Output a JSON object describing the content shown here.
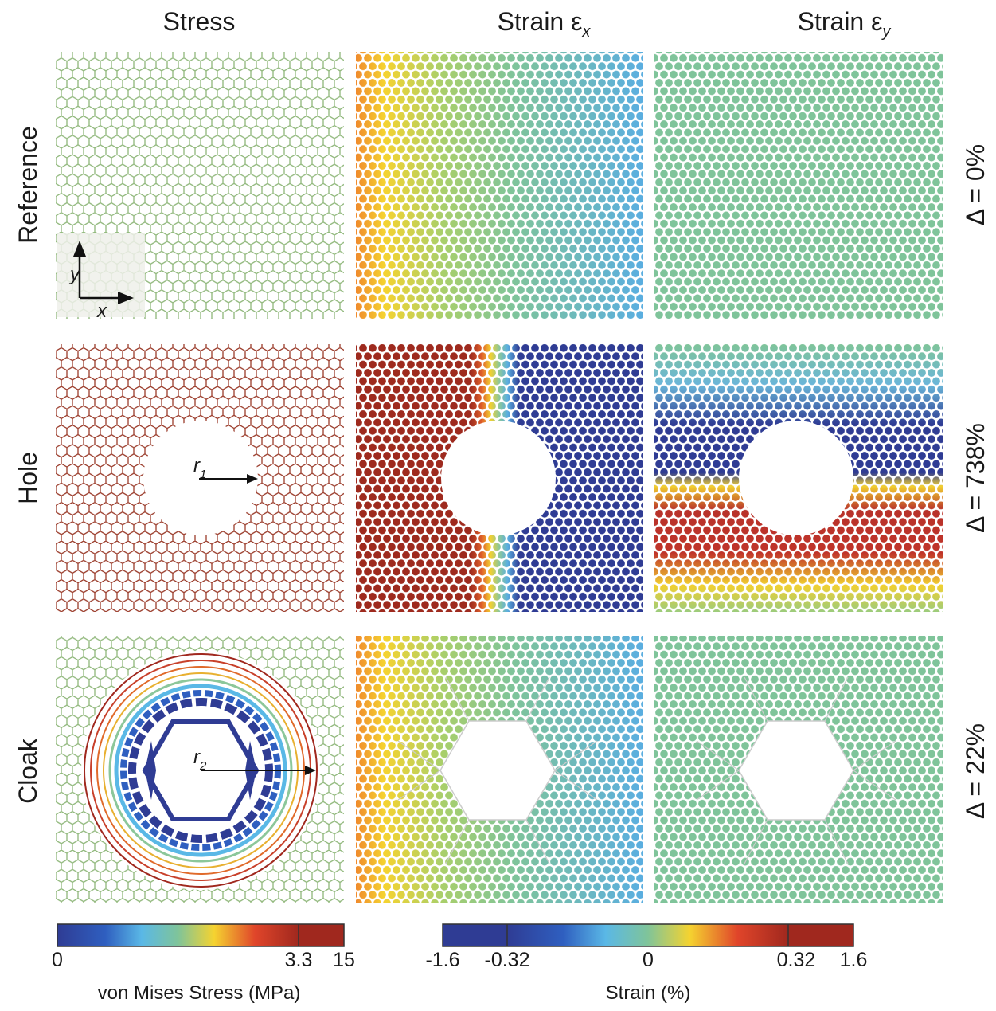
{
  "columns": [
    {
      "text": "Stress"
    },
    {
      "text": "Strain ε",
      "subscript": "x"
    },
    {
      "text": "Strain ε",
      "subscript": "y"
    }
  ],
  "rows": [
    {
      "label": "Reference",
      "delta": "Δ = 0%"
    },
    {
      "label": "Hole",
      "delta": "Δ = 738%"
    },
    {
      "label": "Cloak",
      "delta": "Δ = 22%"
    }
  ],
  "annotations": {
    "axis_x": "x",
    "axis_y": "y",
    "r1": {
      "text": "r",
      "subscript": "1"
    },
    "r2": {
      "text": "r",
      "subscript": "2"
    }
  },
  "colorbars": [
    {
      "title": "von Mises Stress (MPa)",
      "ticks": [
        "0",
        "3.3",
        "15"
      ]
    },
    {
      "title": "Strain (%)",
      "ticks": [
        "-1.6",
        "-0.32",
        "0",
        "0.32",
        "1.6"
      ]
    }
  ]
}
